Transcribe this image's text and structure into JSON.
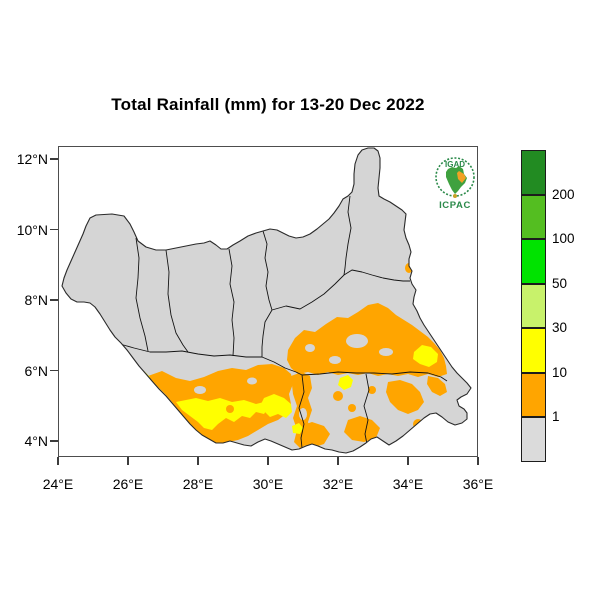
{
  "title": "Total Rainfall (mm) for 13-20 Dec 2022",
  "axes": {
    "x_ticks": [
      "24°E",
      "26°E",
      "28°E",
      "30°E",
      "32°E",
      "34°E",
      "36°E"
    ],
    "y_ticks": [
      "12°N",
      "10°N",
      "8°N",
      "6°N",
      "4°N"
    ]
  },
  "legend": {
    "colors_top_to_bottom": [
      "#228B22",
      "#54BE21",
      "#00E300",
      "#C8F26B",
      "#FFFF00",
      "#FFA500",
      "#DBDBDB"
    ],
    "boundary_labels": [
      "200",
      "100",
      "50",
      "30",
      "10",
      "1"
    ]
  },
  "map": {
    "land_color": "#D5D5D5",
    "rain_orange": "#FFA500",
    "rain_yellow": "#FFFF00"
  },
  "logo": {
    "org": "IGAD",
    "center": "ICPAC",
    "green": "#2B8A4A",
    "africa_green": "#3FA13F",
    "region_orange": "#F2A124",
    "gold": "#C9A227"
  }
}
